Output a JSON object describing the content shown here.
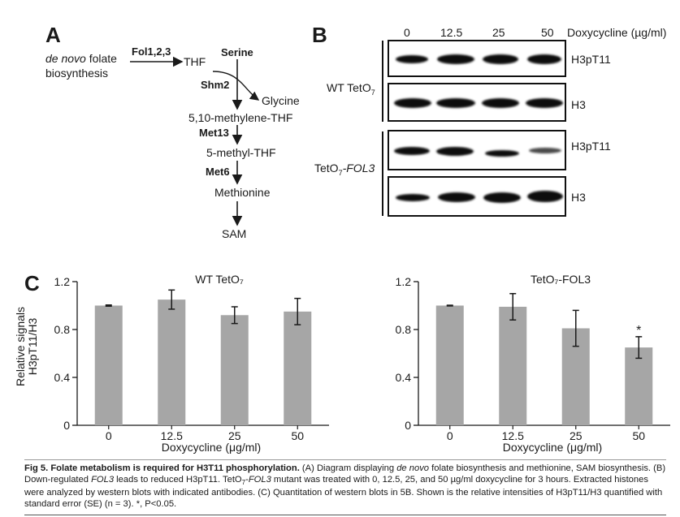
{
  "panelA": {
    "letter": "A",
    "de_novo_italic": "de novo",
    "de_novo_rest": " folate",
    "biosynthesis": "biosynthesis",
    "fol": "Fol1,2,3",
    "thf": "THF",
    "serine": "Serine",
    "shm2": "Shm2",
    "glycine": "Glycine",
    "methylene": "5,10-methylene-THF",
    "met13": "Met13",
    "methyl": "5-methyl-THF",
    "met6": "Met6",
    "methionine": "Methionine",
    "sam": "SAM"
  },
  "panelB": {
    "letter": "B",
    "doses": [
      "0",
      "12.5",
      "25",
      "50"
    ],
    "dose_unit": "Doxycycline (µg/ml)",
    "wt_label": "WT TetO",
    "wt_sub": "7",
    "mut_label_prefix": "TetO",
    "mut_sub": "7",
    "mut_label_suffix": "-FOL3",
    "row_labels": [
      "H3pT11",
      "H3",
      "H3pT11",
      "H3"
    ]
  },
  "panelC": {
    "letter": "C",
    "ylabel_line1": "Relative signals",
    "ylabel_line2": "H3pT11/H3"
  },
  "chart_data": [
    {
      "type": "bar",
      "title": "WT TetO₇",
      "categories": [
        "0",
        "12.5",
        "25",
        "50"
      ],
      "values": [
        1.0,
        1.05,
        0.92,
        0.95
      ],
      "errors": [
        0.005,
        0.08,
        0.07,
        0.11
      ],
      "xlabel": "Doxycycline (μg/ml)",
      "ylabel": "Relative signals H3pT11/H3",
      "ylim": [
        0,
        1.2
      ],
      "yticks": [
        "0",
        "0.4",
        "0.8",
        "1.2"
      ],
      "bar_color": "#a6a6a6",
      "annotations": []
    },
    {
      "type": "bar",
      "title": "TetO₇-FOL3",
      "categories": [
        "0",
        "12.5",
        "25",
        "50"
      ],
      "values": [
        1.0,
        0.99,
        0.81,
        0.65
      ],
      "errors": [
        0.003,
        0.11,
        0.15,
        0.09
      ],
      "xlabel": "Doxycycline (μg/ml)",
      "ylabel": "",
      "ylim": [
        0,
        1.2
      ],
      "yticks": [
        "0",
        "0.4",
        "0.8",
        "1.2"
      ],
      "bar_color": "#a6a6a6",
      "annotations": [
        "",
        "",
        "",
        "*"
      ]
    }
  ],
  "caption": {
    "fig": "Fig 5.",
    "title": " Folate metabolism is required for H3T11 phosphorylation.",
    "t1": " (A) Diagram displaying ",
    "t1_it": "de novo",
    "t2": " folate biosynthesis and methionine, SAM biosynthesis. (B) Down-regulated ",
    "t2_it": "FOL3",
    "t3": " leads to reduced H3pT11. TetO",
    "t3_sub": "7",
    "t3b": "-",
    "t3_it": "FOL3",
    "t4": " mutant was treated with 0, 12.5, 25, and 50 µg/ml doxycycline for 3 hours. Extracted histones were analyzed by western blots with indicated antibodies. (C) Quantitation of western blots in 5B. Shown is the relative intensities of H3pT11/H3 quantified with standard error (SE) (n = 3). *, P<0.05."
  }
}
